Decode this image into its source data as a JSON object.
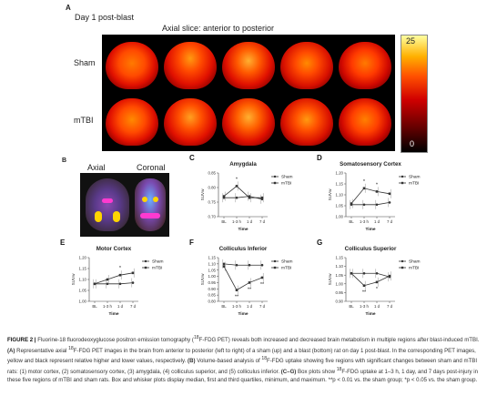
{
  "panelA": {
    "letter": "A",
    "subtitle": "Day 1 post-blast",
    "header": "Axial slice: anterior to posterior",
    "row_labels": [
      "Sham",
      "mTBI"
    ],
    "colorbar_max": "25",
    "colorbar_min": "0"
  },
  "panelB": {
    "letter": "B",
    "axial_label": "Axial",
    "coronal_label": "Coronal"
  },
  "charts": [
    {
      "id": "C",
      "letter": "C",
      "title": "Amygdala",
      "chart_data": {
        "type": "line",
        "categories": [
          "BL",
          "1-3 h",
          "1 d",
          "7 d"
        ],
        "ylabel": "SUVw",
        "xlabel": "Time",
        "ylim": [
          0.7,
          0.85
        ],
        "yticks": [
          "0.70",
          "0.75",
          "0.80",
          "0.85"
        ],
        "series": [
          {
            "name": "Sham",
            "values": [
              0.765,
              0.765,
              0.77,
              0.76
            ]
          },
          {
            "name": "mTBI",
            "values": [
              0.77,
              0.805,
              0.765,
              0.765
            ]
          }
        ],
        "annotations": [
          {
            "at": "1-3 h",
            "text": "*"
          }
        ]
      }
    },
    {
      "id": "D",
      "letter": "D",
      "title": "Somatosensory Cortex",
      "chart_data": {
        "type": "line",
        "categories": [
          "BL",
          "1-3 h",
          "1 d",
          "7 d"
        ],
        "ylabel": "SUVw",
        "xlabel": "Time",
        "ylim": [
          1.0,
          1.2
        ],
        "yticks": [
          "1.00",
          "1.05",
          "1.10",
          "1.15",
          "1.20"
        ],
        "series": [
          {
            "name": "Sham",
            "values": [
              1.055,
              1.055,
              1.055,
              1.065
            ]
          },
          {
            "name": "mTBI",
            "values": [
              1.06,
              1.13,
              1.115,
              1.105
            ]
          }
        ],
        "annotations": [
          {
            "at": "1-3 h",
            "text": "*"
          },
          {
            "at": "1 d",
            "text": "*"
          }
        ]
      }
    },
    {
      "id": "E",
      "letter": "E",
      "title": "Motor Cortex",
      "chart_data": {
        "type": "line",
        "categories": [
          "BL",
          "1-3 h",
          "1 d",
          "7 d"
        ],
        "ylabel": "SUVw",
        "xlabel": "Time",
        "ylim": [
          1.0,
          1.2
        ],
        "yticks": [
          "1.00",
          "1.05",
          "1.10",
          "1.15",
          "1.20"
        ],
        "series": [
          {
            "name": "Sham",
            "values": [
              1.08,
              1.08,
              1.08,
              1.085
            ]
          },
          {
            "name": "mTBI",
            "values": [
              1.08,
              1.1,
              1.12,
              1.13
            ]
          }
        ],
        "annotations": [
          {
            "at": "1 d",
            "text": "*"
          }
        ]
      }
    },
    {
      "id": "F",
      "letter": "F",
      "title": "Colliculus Inferior",
      "chart_data": {
        "type": "line",
        "categories": [
          "BL",
          "1-3 h",
          "1 d",
          "7 d"
        ],
        "ylabel": "SUVw",
        "xlabel": "Time",
        "ylim": [
          0.8,
          1.15
        ],
        "yticks": [
          "0.80",
          "0.85",
          "0.90",
          "0.95",
          "1.00",
          "1.05",
          "1.10",
          "1.15"
        ],
        "series": [
          {
            "name": "Sham",
            "values": [
              1.1,
              1.09,
              1.09,
              1.09
            ]
          },
          {
            "name": "mTBI",
            "values": [
              1.08,
              0.89,
              0.95,
              0.99
            ]
          }
        ],
        "annotations": [
          {
            "at": "1-3 h",
            "text": "**"
          },
          {
            "at": "1 d",
            "text": "**"
          },
          {
            "at": "7 d",
            "text": "**"
          }
        ]
      }
    },
    {
      "id": "G",
      "letter": "G",
      "title": "Colliculus Superior",
      "chart_data": {
        "type": "line",
        "categories": [
          "BL",
          "1-3 h",
          "1 d",
          "7 d"
        ],
        "ylabel": "SUVw",
        "xlabel": "Time",
        "ylim": [
          0.9,
          1.15
        ],
        "yticks": [
          "0.90",
          "0.95",
          "1.00",
          "1.05",
          "1.10",
          "1.15"
        ],
        "series": [
          {
            "name": "Sham",
            "values": [
              1.06,
              1.06,
              1.06,
              1.04
            ]
          },
          {
            "name": "mTBI",
            "values": [
              1.06,
              0.99,
              1.01,
              1.045
            ]
          }
        ],
        "annotations": [
          {
            "at": "1-3 h",
            "text": "**"
          },
          {
            "at": "1 d",
            "text": "*"
          }
        ]
      }
    }
  ],
  "colors": {
    "line": "#333333",
    "axis": "#444444"
  },
  "caption": {
    "label": "FIGURE 2 |",
    "text1": "Fluorine-18 fluorodeoxyglucose positron emission tomography (",
    "sup1": "18",
    "text2": "F-FDG PET) reveals both increased and decreased brain metabolism in multiple regions after blast-induced mTBI.",
    "a_label": "(A)",
    "text3": "Representative axial",
    "sup2": "18",
    "text4": "F-FDG PET images in the brain from anterior to posterior (left to right) of a sham (up) and a blast (bottom) rat on day 1 post-blast. In the corresponding PET images, yellow and black represent relative higher and lower values, respectively.",
    "b_label": "(B)",
    "text5": "Volume-based analysis of",
    "sup3": "18",
    "text6": "F-FDG uptake showing five regions with significant changes between sham and mTBI rats: (1) motor cortex, (2) somatosensory cortex, (3) amygdala, (4) colliculus superior, and (5) colliculus inferior.",
    "cg_label": "(C–G)",
    "text7": "Box plots show",
    "sup4": "18",
    "text8": "F-FDG uptake at 1–3 h, 1 day, and 7 days post-injury in these five regions of mTBI and sham rats. Box and whisker plots display median, first and third quartiles, minimum, and maximum. **p < 0.01 vs. the sham group; *p < 0.05 vs. the sham group."
  }
}
